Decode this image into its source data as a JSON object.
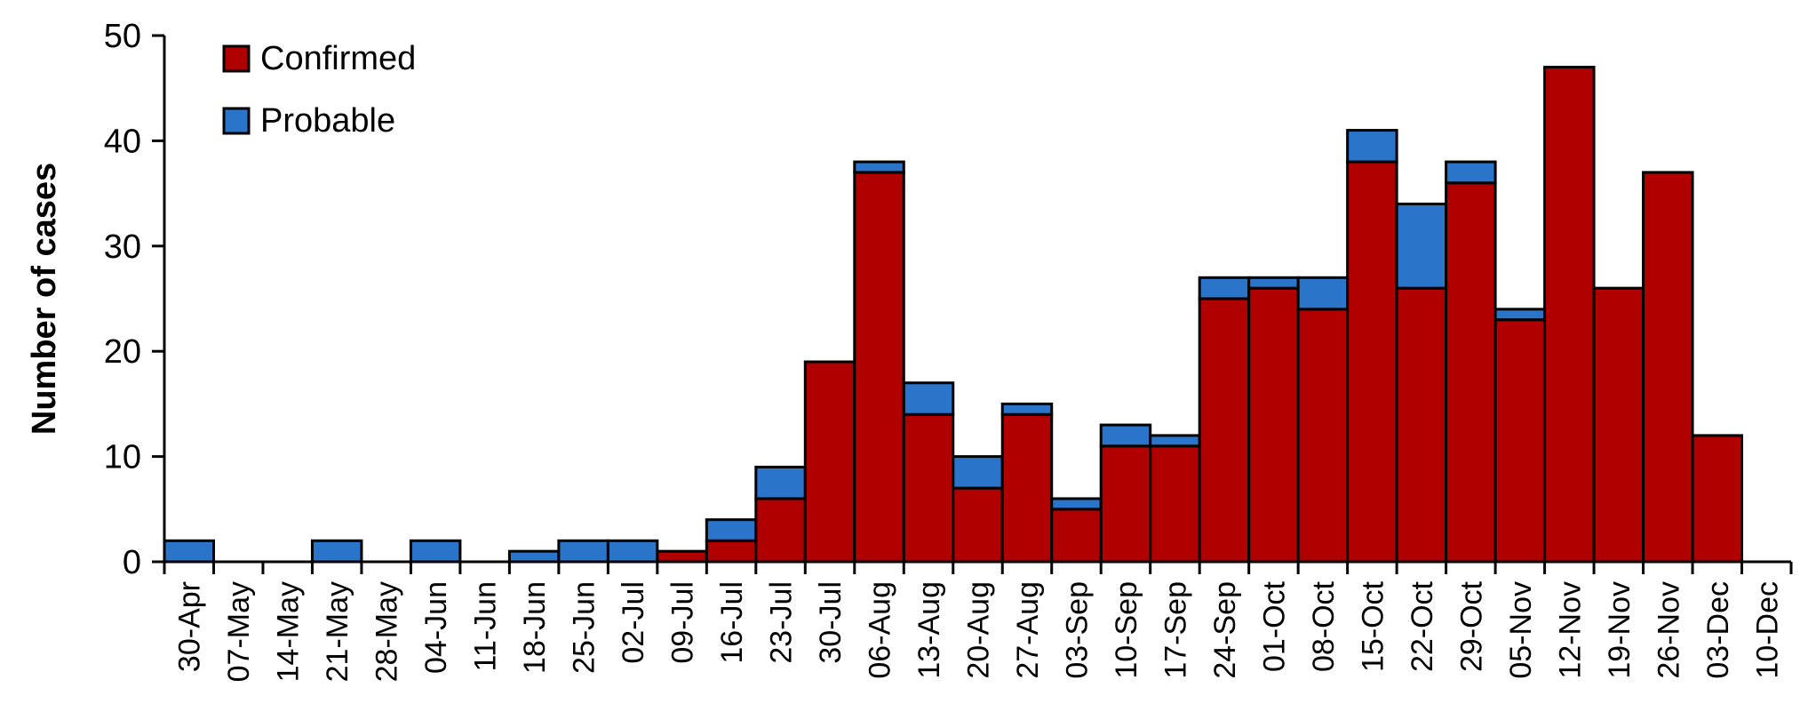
{
  "chart_data": {
    "type": "bar",
    "stacked": true,
    "ylabel": "Number of cases",
    "xlabel": "",
    "ylim": [
      0,
      50
    ],
    "y_ticks": [
      0,
      10,
      20,
      30,
      40,
      50
    ],
    "grid": false,
    "legend_position": "top-left",
    "categories": [
      "30-Apr",
      "07-May",
      "14-May",
      "21-May",
      "28-May",
      "04-Jun",
      "11-Jun",
      "18-Jun",
      "25-Jun",
      "02-Jul",
      "09-Jul",
      "16-Jul",
      "23-Jul",
      "30-Jul",
      "06-Aug",
      "13-Aug",
      "20-Aug",
      "27-Aug",
      "03-Sep",
      "10-Sep",
      "17-Sep",
      "24-Sep",
      "01-Oct",
      "08-Oct",
      "15-Oct",
      "22-Oct",
      "29-Oct",
      "05-Nov",
      "12-Nov",
      "19-Nov",
      "26-Nov",
      "03-Dec",
      "10-Dec"
    ],
    "series": [
      {
        "name": "Confirmed",
        "color": "#b00000",
        "values": [
          0,
          0,
          0,
          0,
          0,
          0,
          0,
          0,
          0,
          0,
          1,
          2,
          6,
          19,
          37,
          14,
          7,
          14,
          5,
          11,
          11,
          25,
          26,
          24,
          38,
          26,
          36,
          23,
          47,
          26,
          37,
          12,
          0
        ]
      },
      {
        "name": "Probable",
        "color": "#2a74c9",
        "values": [
          2,
          0,
          0,
          2,
          0,
          2,
          0,
          1,
          2,
          2,
          0,
          2,
          3,
          0,
          1,
          3,
          3,
          1,
          1,
          2,
          1,
          2,
          1,
          3,
          3,
          8,
          2,
          1,
          0,
          0,
          0,
          0,
          0
        ]
      }
    ]
  }
}
